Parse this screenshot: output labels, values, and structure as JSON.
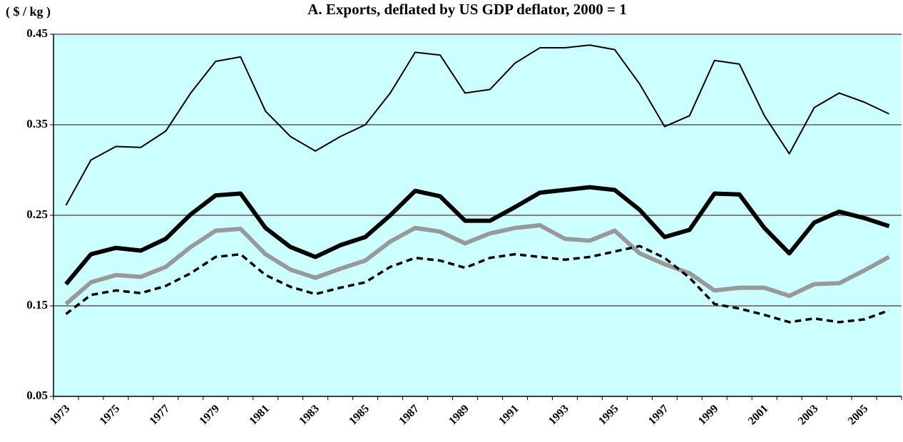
{
  "chart_data": {
    "type": "line",
    "title": "A. Exports, deflated by US GDP deflator, 2000 = 1",
    "y_label": "( $ / kg )",
    "categories": [
      "1973",
      null,
      "1975",
      null,
      "1977",
      null,
      "1979",
      null,
      "1981",
      null,
      "1983",
      null,
      "1985",
      null,
      "1987",
      null,
      "1989",
      null,
      "1991",
      null,
      "1993",
      null,
      "1995",
      null,
      "1997",
      null,
      "1999",
      null,
      "2001",
      null,
      "2003",
      null,
      "2005",
      null
    ],
    "ylim": [
      0.05,
      0.45
    ],
    "yticks": [
      0.05,
      0.15,
      0.25,
      0.35,
      0.45
    ],
    "grid": true,
    "background": "#ccffff",
    "series": [
      {
        "color": "#000000",
        "line_width": 2,
        "dash": false,
        "values": [
          0.261,
          0.311,
          0.326,
          0.325,
          0.343,
          0.385,
          0.42,
          0.425,
          0.365,
          0.337,
          0.321,
          0.337,
          0.35,
          0.385,
          0.43,
          0.427,
          0.385,
          0.389,
          0.418,
          0.435,
          0.435,
          0.438,
          0.433,
          0.395,
          0.348,
          0.36,
          0.421,
          0.417,
          0.36,
          0.318,
          0.369,
          0.385,
          0.375,
          0.362
        ]
      },
      {
        "color": "#000000",
        "line_width": 6,
        "dash": false,
        "values": [
          0.174,
          0.207,
          0.214,
          0.211,
          0.224,
          0.251,
          0.272,
          0.274,
          0.236,
          0.215,
          0.204,
          0.217,
          0.226,
          0.25,
          0.277,
          0.271,
          0.244,
          0.244,
          0.259,
          0.275,
          0.278,
          0.281,
          0.278,
          0.256,
          0.226,
          0.234,
          0.274,
          0.273,
          0.236,
          0.208,
          0.242,
          0.254,
          0.247,
          0.238
        ]
      },
      {
        "color": "#999999",
        "line_width": 6,
        "dash": false,
        "values": [
          0.152,
          0.176,
          0.184,
          0.182,
          0.193,
          0.215,
          0.233,
          0.235,
          0.207,
          0.19,
          0.181,
          0.191,
          0.2,
          0.221,
          0.236,
          0.232,
          0.219,
          0.23,
          0.236,
          0.239,
          0.224,
          0.222,
          0.233,
          0.208,
          0.196,
          0.186,
          0.167,
          0.17,
          0.17,
          0.161,
          0.174,
          0.175,
          0.189,
          0.204
        ]
      },
      {
        "color": "#000000",
        "line_width": 3.5,
        "dash": true,
        "values": [
          0.141,
          0.162,
          0.167,
          0.164,
          0.172,
          0.186,
          0.204,
          0.207,
          0.184,
          0.171,
          0.163,
          0.17,
          0.176,
          0.193,
          0.203,
          0.2,
          0.192,
          0.203,
          0.207,
          0.204,
          0.201,
          0.204,
          0.21,
          0.216,
          0.203,
          0.181,
          0.152,
          0.147,
          0.14,
          0.132,
          0.136,
          0.132,
          0.135,
          0.145
        ]
      }
    ]
  }
}
